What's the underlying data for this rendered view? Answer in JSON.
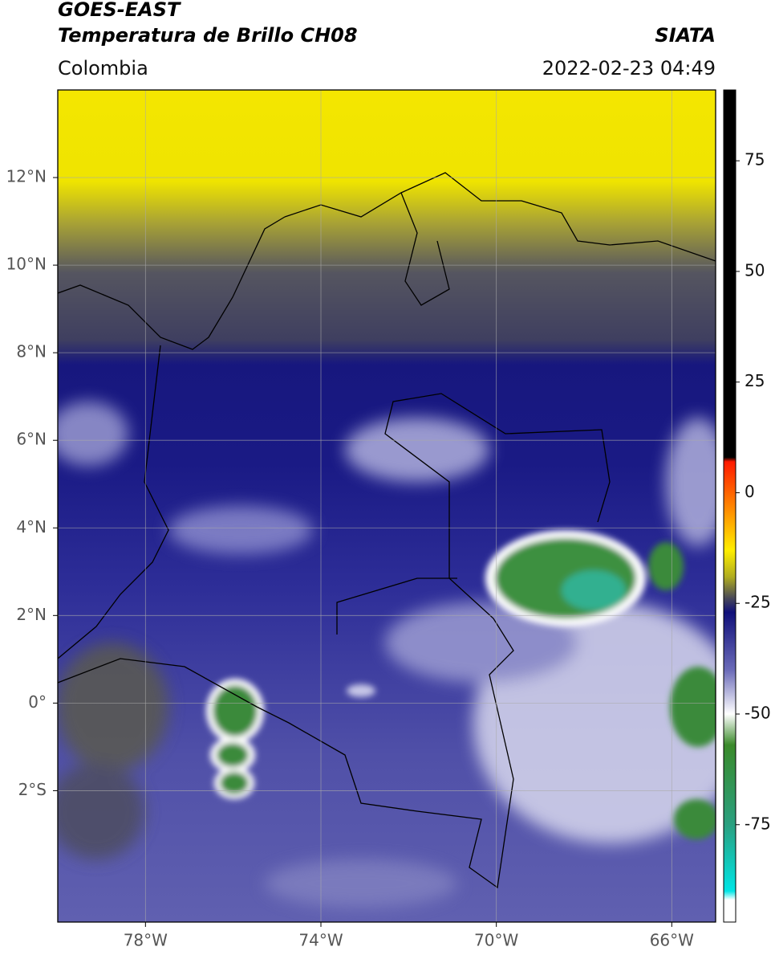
{
  "header": {
    "satellite": "GOES-EAST",
    "product": "Temperatura de Brillo CH08",
    "region": "Colombia",
    "source": "SIATA",
    "datetime": "2022-02-23 04:49"
  },
  "map": {
    "xlim": [
      -80,
      -65
    ],
    "ylim": [
      -5,
      14
    ],
    "grid": true,
    "xticks": [
      {
        "value": -78,
        "label": "78°W"
      },
      {
        "value": -74,
        "label": "74°W"
      },
      {
        "value": -70,
        "label": "70°W"
      },
      {
        "value": -66,
        "label": "66°W"
      }
    ],
    "yticks": [
      {
        "value": 12,
        "label": "12°N"
      },
      {
        "value": 10,
        "label": "10°N"
      },
      {
        "value": 8,
        "label": "8°N"
      },
      {
        "value": 6,
        "label": "6°N"
      },
      {
        "value": 4,
        "label": "4°N"
      },
      {
        "value": 2,
        "label": "2°N"
      },
      {
        "value": 0,
        "label": "0°"
      },
      {
        "value": -2,
        "label": "2°S"
      }
    ]
  },
  "colorbar": {
    "clim": [
      -97,
      91
    ],
    "ticks": [
      75,
      50,
      25,
      0,
      -25,
      -50,
      -75
    ],
    "colormap": [
      {
        "value": 91,
        "color": "#000000"
      },
      {
        "value": 8,
        "color": "#000000"
      },
      {
        "value": 7,
        "color": "#ff1a00"
      },
      {
        "value": -5,
        "color": "#ff9900"
      },
      {
        "value": -13,
        "color": "#ffee00"
      },
      {
        "value": -19,
        "color": "#b0ad20"
      },
      {
        "value": -24,
        "color": "#45455a"
      },
      {
        "value": -27,
        "color": "#10107a"
      },
      {
        "value": -40,
        "color": "#6a6ab8"
      },
      {
        "value": -50,
        "color": "#ffffff"
      },
      {
        "value": -57,
        "color": "#3a8a2a"
      },
      {
        "value": -75,
        "color": "#2aa080"
      },
      {
        "value": -90,
        "color": "#00e5e5"
      },
      {
        "value": -92,
        "color": "#ffffff"
      },
      {
        "value": -97,
        "color": "#ffffff"
      }
    ]
  }
}
